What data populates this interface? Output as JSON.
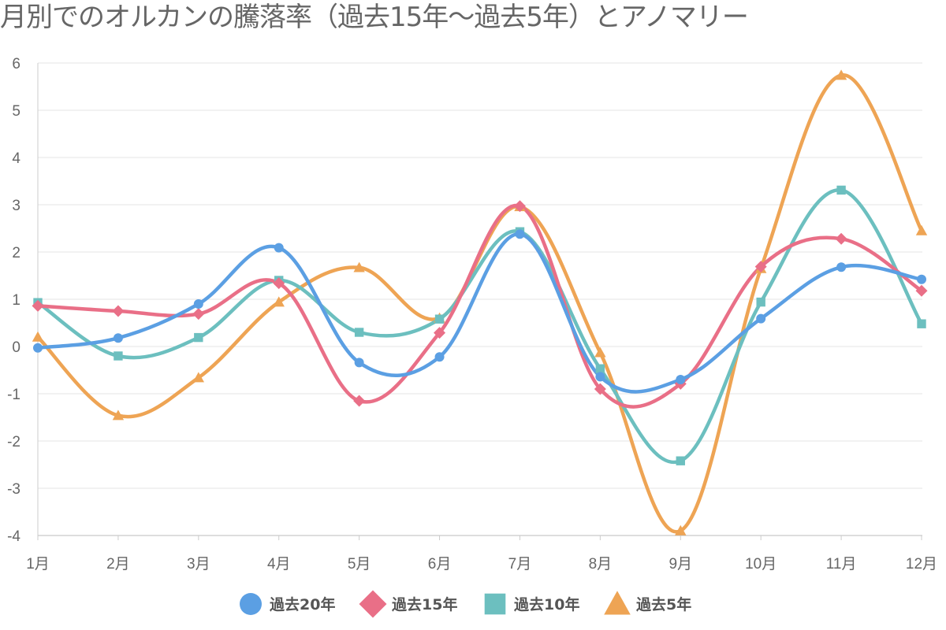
{
  "chart_data": {
    "type": "line",
    "title": "月別でのオルカンの騰落率（過去15年〜過去5年）とアノマリー",
    "xlabel": "",
    "ylabel": "",
    "categories": [
      "1月",
      "2月",
      "3月",
      "4月",
      "5月",
      "6月",
      "7月",
      "8月",
      "9月",
      "10月",
      "11月",
      "12月"
    ],
    "ylim": [
      -4,
      6
    ],
    "yticks": [
      6,
      5,
      4,
      3,
      2,
      1,
      0,
      -1,
      -2,
      -3,
      -4
    ],
    "grid": true,
    "legend_position": "bottom",
    "series": [
      {
        "name": "過去20年",
        "color": "#5b9fe3",
        "marker": "circle",
        "values": [
          -0.03,
          0.18,
          0.9,
          2.09,
          -0.34,
          -0.22,
          2.38,
          -0.64,
          -0.7,
          0.59,
          1.68,
          1.42
        ]
      },
      {
        "name": "過去15年",
        "color": "#e96f87",
        "marker": "diamond",
        "values": [
          0.86,
          0.75,
          0.69,
          1.34,
          -1.15,
          0.29,
          2.97,
          -0.9,
          -0.79,
          1.69,
          2.28,
          1.18
        ]
      },
      {
        "name": "過去10年",
        "color": "#6cbfbf",
        "marker": "square",
        "values": [
          0.93,
          -0.2,
          0.19,
          1.4,
          0.3,
          0.58,
          2.43,
          -0.47,
          -2.42,
          0.94,
          3.31,
          0.48
        ]
      },
      {
        "name": "過去5年",
        "color": "#eea454",
        "marker": "triangle",
        "values": [
          0.2,
          -1.46,
          -0.66,
          0.94,
          1.67,
          0.6,
          2.96,
          -0.13,
          -3.9,
          1.65,
          5.74,
          2.45
        ]
      }
    ]
  }
}
